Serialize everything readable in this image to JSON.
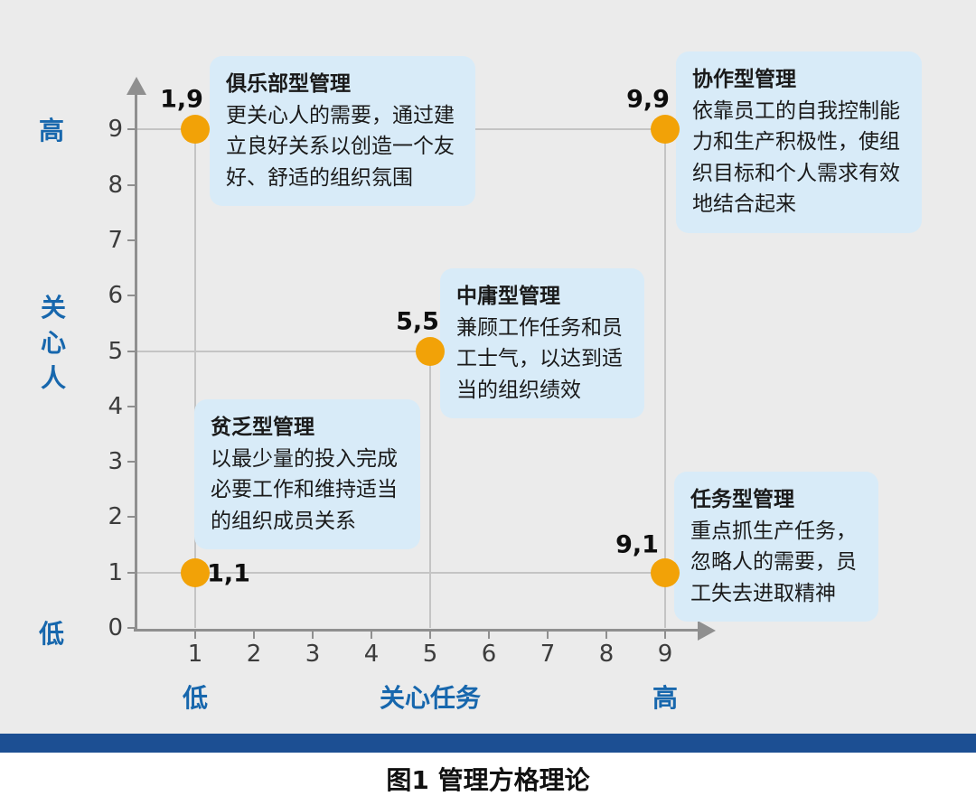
{
  "caption": "图1 管理方格理论",
  "axes": {
    "x_label": "关心任务",
    "x_low_label": "低",
    "x_high_label": "高",
    "y_label": "关心人",
    "y_low_label": "低",
    "y_high_label": "高",
    "x_ticks": [
      "1",
      "2",
      "3",
      "4",
      "5",
      "6",
      "7",
      "8",
      "9"
    ],
    "y_ticks": [
      "0",
      "1",
      "2",
      "3",
      "4",
      "5",
      "6",
      "7",
      "8",
      "9"
    ]
  },
  "chart_data": {
    "type": "scatter",
    "title": "图1 管理方格理论",
    "xlabel": "关心任务",
    "ylabel": "关心人",
    "x_end_labels": [
      "低",
      "高"
    ],
    "y_end_labels": [
      "低",
      "高"
    ],
    "xlim": [
      0,
      9.6
    ],
    "ylim": [
      0,
      9.6
    ],
    "grid": "reference lines at coordinates 1, 5, 9 through the data points",
    "legend_position": "none",
    "point_color": "#F2A207",
    "points": [
      {
        "x": 1,
        "y": 9,
        "label": "1,9",
        "name": "俱乐部型管理",
        "description": "更关心人的需要，通过建立良好关系以创造一个友好、舒适的组织氛围"
      },
      {
        "x": 9,
        "y": 9,
        "label": "9,9",
        "name": "协作型管理",
        "description": "依靠员工的自我控制能力和生产积极性，使组织目标和个人需求有效地结合起来"
      },
      {
        "x": 5,
        "y": 5,
        "label": "5,5",
        "name": "中庸型管理",
        "description": "兼顾工作任务和员工士气，以达到适当的组织绩效"
      },
      {
        "x": 1,
        "y": 1,
        "label": "1,1",
        "name": "贫乏型管理",
        "description": "以最少量的投入完成必要工作和维持适当的组织成员关系"
      },
      {
        "x": 9,
        "y": 1,
        "label": "9,1",
        "name": "任务型管理",
        "description": "重点抓生产任务，忽略人的需要，员工失去进取精神"
      }
    ]
  },
  "colors": {
    "figure_background": "#EBEBEB",
    "axis_line": "#8F8F8F",
    "grid_line": "#C4C4C4",
    "axis_text_blue": "#1767AD",
    "tick_text": "#3C3C3C",
    "point_orange": "#F2A207",
    "callout_background": "#D8EBF8",
    "bottom_bar_blue": "#1C4F93",
    "caption_text": "#111111"
  }
}
